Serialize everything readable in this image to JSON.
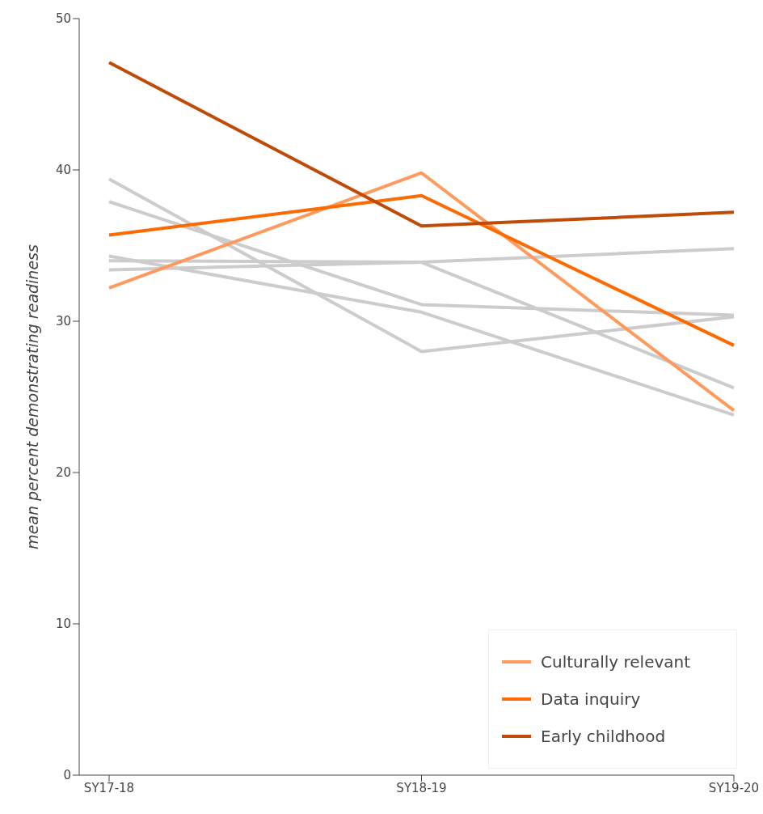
{
  "chart_data": {
    "type": "line",
    "ylabel": "mean percent demonstrating readiness",
    "categories": [
      "SY17-18",
      "SY18-19",
      "SY19-20"
    ],
    "ylim": [
      0,
      50
    ],
    "yticks": [
      0,
      10,
      20,
      30,
      40,
      50
    ],
    "grid": false,
    "legend": "bottom right",
    "marker": "none",
    "line_style": "solid",
    "series": [
      {
        "color": "#cccccc",
        "values": [
          39.4,
          28.0,
          30.3
        ]
      },
      {
        "color": "#cccccc",
        "values": [
          37.9,
          31.1,
          30.4
        ]
      },
      {
        "color": "#cccccc",
        "values": [
          34.3,
          30.6,
          23.8
        ]
      },
      {
        "color": "#cccccc",
        "values": [
          34.0,
          33.9,
          25.6
        ]
      },
      {
        "color": "#cccccc",
        "values": [
          33.4,
          33.9,
          34.8
        ]
      },
      {
        "name": "Culturally relevant",
        "color": "#ff9a5c",
        "values": [
          32.2,
          39.8,
          24.1
        ]
      },
      {
        "name": "Data inquiry",
        "color": "#ff6a00",
        "values": [
          35.7,
          38.3,
          28.4
        ]
      },
      {
        "name": "Early childhood",
        "color": "#c04a08",
        "values": [
          47.1,
          36.3,
          37.2
        ]
      }
    ]
  }
}
